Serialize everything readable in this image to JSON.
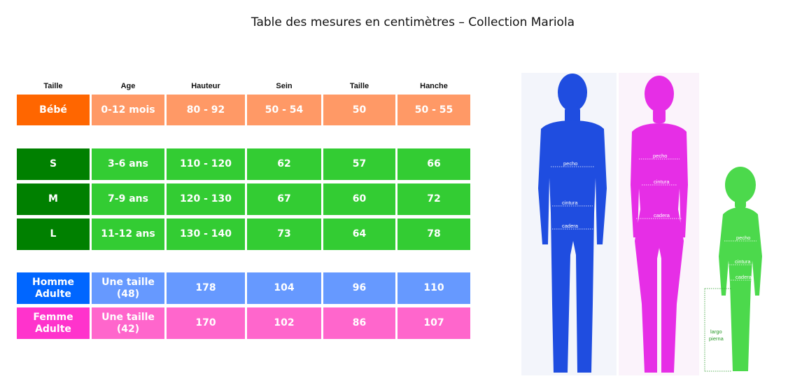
{
  "title": "Table des mesures en centimètres – Collection Mariola",
  "headers": [
    "Taille",
    "Age",
    "Hauteur",
    "Sein",
    "Taille",
    "Hanche"
  ],
  "colors": {
    "bebe_label": "#FF6600",
    "bebe_cell": "#FF9966",
    "kids_label": "#008000",
    "kids_cell": "#33CC33",
    "homme_label": "#0066FF",
    "homme_cell": "#6699FF",
    "femme_label": "#FF33CC",
    "femme_cell": "#FF66CC"
  },
  "rows": {
    "bebe": [
      "Bébé",
      "0-12 mois",
      "80 - 92",
      "50 - 54",
      "50",
      "50 - 55"
    ],
    "s": [
      "S",
      "3-6 ans",
      "110 - 120",
      "62",
      "57",
      "66"
    ],
    "m": [
      "M",
      "7-9 ans",
      "120 - 130",
      "67",
      "60",
      "72"
    ],
    "l": [
      "L",
      "11-12 ans",
      "130 - 140",
      "73",
      "64",
      "78"
    ],
    "homme": [
      "Homme\nAdulte",
      "Une taille\n(48)",
      "178",
      "104",
      "96",
      "110"
    ],
    "femme": [
      "Femme\nAdulte",
      "Une taille\n(42)",
      "170",
      "102",
      "86",
      "107"
    ]
  },
  "figure_labels": {
    "man": [
      "pecho",
      "cintura",
      "cadera"
    ],
    "woman": [
      "pecho",
      "cintura",
      "cadera"
    ],
    "child": [
      "pecho",
      "cintura",
      "cadera",
      "largo",
      "pierna"
    ]
  },
  "figure_colors": {
    "man": "#1f4de0",
    "woman": "#e62ee6",
    "child": "#4cd94c"
  }
}
